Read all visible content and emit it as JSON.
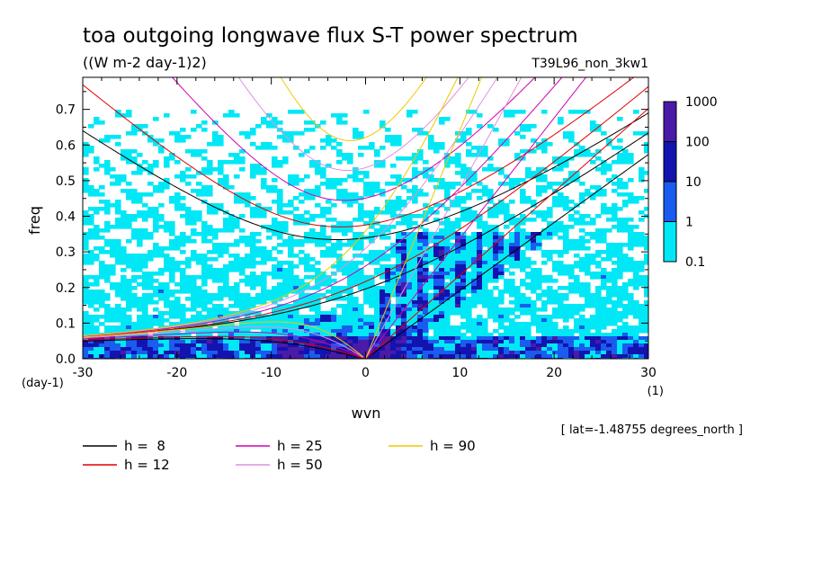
{
  "chart_data": {
    "type": "heatmap",
    "title": "toa outgoing longwave flux S-T power spectrum",
    "subtitle": "((W m-2 day-1)2)",
    "run_label": "T39L96_non_3kw1",
    "xlabel": "wvn",
    "ylabel": "freq",
    "x_unit": "(1)",
    "y_unit": "(day-1)",
    "xlim": [
      -30,
      30
    ],
    "ylim": [
      0,
      0.79
    ],
    "x_ticks": [
      "-30",
      "-20",
      "-10",
      "0",
      "10",
      "20",
      "30"
    ],
    "y_ticks": [
      "0.0",
      "0.1",
      "0.2",
      "0.3",
      "0.4",
      "0.5",
      "0.6",
      "0.7"
    ],
    "footnote": "[ lat=-1.48755 degrees_north ]",
    "colorbar": {
      "labels": [
        "1000",
        "100",
        "10",
        "1",
        "0.1"
      ],
      "colors": [
        "#4a1aa8",
        "#1313b0",
        "#1a5cf0",
        "#00e8f5"
      ]
    },
    "dispersion_curves": [
      {
        "label": "h =  8",
        "h": 8,
        "color": "#000000"
      },
      {
        "label": "h = 12",
        "h": 12,
        "color": "#e00000"
      },
      {
        "label": "h = 25",
        "h": 25,
        "color": "#d000b0"
      },
      {
        "label": "h = 50",
        "h": 50,
        "color": "#e090e0"
      },
      {
        "label": "h = 90",
        "h": 90,
        "color": "#f0c800"
      }
    ]
  }
}
